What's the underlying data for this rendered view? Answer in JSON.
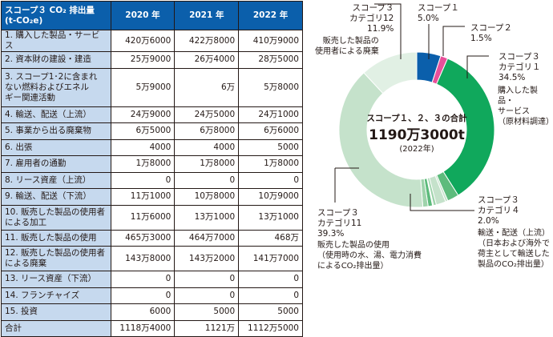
{
  "table": {
    "header": [
      "スコープ３ CO₂ 排出量\n(t-CO₂e)",
      "2020 年",
      "2021 年",
      "2022 年"
    ],
    "rows": [
      {
        "label": "1. 購入した製品・サービス",
        "v": [
          "420万6000",
          "422万8000",
          "410万9000"
        ]
      },
      {
        "label": "2. 資本財の建設・建造",
        "v": [
          "25万9000",
          "26万4000",
          "28万5000"
        ]
      },
      {
        "label": "3. スコープ1･2に含まれ\nない燃料およびエネル\nギー関連活動",
        "v": [
          "5万9000",
          "6万",
          "5万8000"
        ]
      },
      {
        "label": "4. 輸送、配送（上流）",
        "v": [
          "24万9000",
          "24万5000",
          "24万1000"
        ]
      },
      {
        "label": "5. 事業から出る廃棄物",
        "v": [
          "6万5000",
          "6万8000",
          "6万6000"
        ]
      },
      {
        "label": "6. 出張",
        "v": [
          "4000",
          "4000",
          "5000"
        ]
      },
      {
        "label": "7. 雇用者の通勤",
        "v": [
          "1万8000",
          "1万8000",
          "1万8000"
        ]
      },
      {
        "label": "8. リース資産（上流）",
        "v": [
          "0",
          "0",
          "0"
        ]
      },
      {
        "label": "9. 輸送、配送（下流）",
        "v": [
          "11万1000",
          "10万8000",
          "10万9000"
        ]
      },
      {
        "label": "10. 販売した製品の使用者\nによる加工",
        "v": [
          "11万6000",
          "13万1000",
          "13万1000"
        ]
      },
      {
        "label": "11. 販売した製品の使用",
        "v": [
          "465万3000",
          "464万7000",
          "468万"
        ]
      },
      {
        "label": "12. 販売した製品の使用者\nによる廃棄",
        "v": [
          "143万8000",
          "143万2000",
          "141万7000"
        ]
      },
      {
        "label": "13. リース資産（下流）",
        "v": [
          "0",
          "0",
          "0"
        ]
      },
      {
        "label": "14. フランチャイズ",
        "v": [
          "0",
          "0",
          "0"
        ]
      },
      {
        "label": "15. 投資",
        "v": [
          "6000",
          "5000",
          "5000"
        ]
      },
      {
        "label": "合計",
        "v": [
          "1118万4000",
          "1121万",
          "1112万5000"
        ]
      }
    ]
  },
  "chart_data": {
    "type": "pie",
    "center": {
      "title": "スコープ１、２、３の合計",
      "total": "1190万3000t",
      "year": "(2022年)"
    },
    "slices": [
      {
        "name": "スコープ１",
        "value": 5.0,
        "color": "#0b5fab",
        "label": "5.0%"
      },
      {
        "name": "スコープ２",
        "value": 1.5,
        "color": "#e8509a",
        "label": "1.5%"
      },
      {
        "name": "スコープ３\nカテゴリ１",
        "value": 34.5,
        "color": "#10a85c",
        "label": "34.5%",
        "desc": "購入した製品・\nサービス\n（原材料調達）"
      },
      {
        "value": 2.4,
        "color": "#5dbb7c"
      },
      {
        "value": 0.5,
        "color": "#c5e2cb"
      },
      {
        "name": "スコープ３\nカテゴリ４",
        "value": 2.0,
        "color": "#c5e2cb",
        "label": "2.0%",
        "desc": "輸送・配送（上流）\n（日本および海外で\n荷主として輸送した\n製品のCO₂排出量）"
      },
      {
        "value": 0.6,
        "color": "#9ed3ab"
      },
      {
        "value": 0.2,
        "color": "#c5e2cb"
      },
      {
        "value": 0.9,
        "color": "#5dbb7c"
      },
      {
        "value": 1.1,
        "color": "#9ed3ab"
      },
      {
        "name": "スコープ３\nカテゴリ11",
        "value": 39.3,
        "color": "#c5e2cb",
        "label": "39.3%",
        "desc": "販売した製品の使用\n（使用時の水、湯、電力消費\nによるCO₂排出量）"
      },
      {
        "name": "スコープ３\nカテゴリ12",
        "value": 11.9,
        "color": "#e1f0e4",
        "label": "11.9%",
        "desc": "販売した製品の\n使用者による廃棄"
      }
    ]
  }
}
